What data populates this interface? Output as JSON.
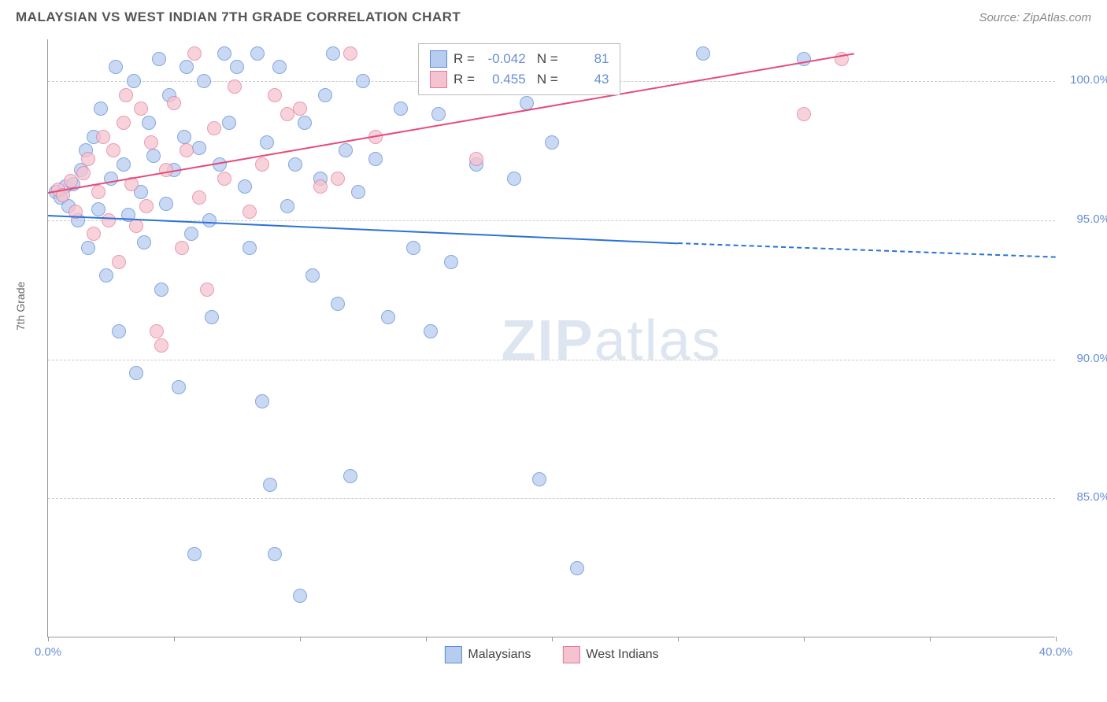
{
  "title": "MALAYSIAN VS WEST INDIAN 7TH GRADE CORRELATION CHART",
  "source": "Source: ZipAtlas.com",
  "watermark_bold": "ZIP",
  "watermark_light": "atlas",
  "chart": {
    "type": "scatter",
    "ylabel": "7th Grade",
    "xlim": [
      0,
      40
    ],
    "ylim": [
      80,
      101.5
    ],
    "yticks": [
      85.0,
      90.0,
      95.0,
      100.0
    ],
    "ytick_labels": [
      "85.0%",
      "90.0%",
      "95.0%",
      "100.0%"
    ],
    "xticks": [
      0,
      5,
      10,
      15,
      20,
      25,
      30,
      35,
      40
    ],
    "xtick_labels": [
      "0.0%",
      "",
      "",
      "",
      "",
      "",
      "",
      "",
      "40.0%"
    ],
    "background_color": "#ffffff",
    "grid_color": "#cccccc",
    "series": [
      {
        "name": "Malaysians",
        "marker_fill": "#b7cdf0",
        "marker_stroke": "#5a8bd6",
        "trend_color": "#2b72d8",
        "trend": {
          "x1": 0,
          "y1": 95.2,
          "x2": 25,
          "y2": 94.2,
          "extend_x": 40,
          "extend_y": 93.7
        },
        "R": "-0.042",
        "N": "81",
        "points": [
          [
            0.3,
            96.0
          ],
          [
            0.5,
            95.8
          ],
          [
            0.7,
            96.2
          ],
          [
            0.8,
            95.5
          ],
          [
            1.0,
            96.3
          ],
          [
            1.2,
            95.0
          ],
          [
            1.3,
            96.8
          ],
          [
            1.5,
            97.5
          ],
          [
            1.6,
            94.0
          ],
          [
            1.8,
            98.0
          ],
          [
            2.0,
            95.4
          ],
          [
            2.1,
            99.0
          ],
          [
            2.3,
            93.0
          ],
          [
            2.5,
            96.5
          ],
          [
            2.7,
            100.5
          ],
          [
            2.8,
            91.0
          ],
          [
            3.0,
            97.0
          ],
          [
            3.2,
            95.2
          ],
          [
            3.4,
            100.0
          ],
          [
            3.5,
            89.5
          ],
          [
            3.7,
            96.0
          ],
          [
            3.8,
            94.2
          ],
          [
            4.0,
            98.5
          ],
          [
            4.2,
            97.3
          ],
          [
            4.4,
            100.8
          ],
          [
            4.5,
            92.5
          ],
          [
            4.7,
            95.6
          ],
          [
            4.8,
            99.5
          ],
          [
            5.0,
            96.8
          ],
          [
            5.2,
            89.0
          ],
          [
            5.4,
            98.0
          ],
          [
            5.5,
            100.5
          ],
          [
            5.7,
            94.5
          ],
          [
            5.8,
            83.0
          ],
          [
            6.0,
            97.6
          ],
          [
            6.2,
            100.0
          ],
          [
            6.4,
            95.0
          ],
          [
            6.5,
            91.5
          ],
          [
            6.8,
            97.0
          ],
          [
            7.0,
            101.0
          ],
          [
            7.2,
            98.5
          ],
          [
            7.5,
            100.5
          ],
          [
            7.8,
            96.2
          ],
          [
            8.0,
            94.0
          ],
          [
            8.3,
            101.0
          ],
          [
            8.5,
            88.5
          ],
          [
            8.7,
            97.8
          ],
          [
            8.8,
            85.5
          ],
          [
            9.0,
            83.0
          ],
          [
            9.2,
            100.5
          ],
          [
            9.5,
            95.5
          ],
          [
            9.8,
            97.0
          ],
          [
            10.0,
            81.5
          ],
          [
            10.2,
            98.5
          ],
          [
            10.5,
            93.0
          ],
          [
            10.8,
            96.5
          ],
          [
            11.0,
            99.5
          ],
          [
            11.3,
            101.0
          ],
          [
            11.5,
            92.0
          ],
          [
            11.8,
            97.5
          ],
          [
            12.0,
            85.8
          ],
          [
            12.3,
            96.0
          ],
          [
            12.5,
            100.0
          ],
          [
            13.0,
            97.2
          ],
          [
            13.5,
            91.5
          ],
          [
            14.0,
            99.0
          ],
          [
            14.5,
            94.0
          ],
          [
            15.0,
            100.5
          ],
          [
            15.2,
            91.0
          ],
          [
            15.5,
            98.8
          ],
          [
            16.0,
            93.5
          ],
          [
            17.0,
            97.0
          ],
          [
            17.5,
            100.8
          ],
          [
            18.5,
            96.5
          ],
          [
            19.0,
            99.2
          ],
          [
            19.5,
            85.7
          ],
          [
            20.0,
            97.8
          ],
          [
            21.0,
            82.5
          ],
          [
            22.0,
            100.5
          ],
          [
            26.0,
            101.0
          ],
          [
            30.0,
            100.8
          ]
        ]
      },
      {
        "name": "West Indians",
        "marker_fill": "#f5c3cf",
        "marker_stroke": "#e37a9a",
        "trend_color": "#e64a7b",
        "trend": {
          "x1": 0,
          "y1": 96.0,
          "x2": 32,
          "y2": 101.0
        },
        "R": "0.455",
        "N": "43",
        "points": [
          [
            0.4,
            96.1
          ],
          [
            0.6,
            95.9
          ],
          [
            0.9,
            96.4
          ],
          [
            1.1,
            95.3
          ],
          [
            1.4,
            96.7
          ],
          [
            1.6,
            97.2
          ],
          [
            1.8,
            94.5
          ],
          [
            2.0,
            96.0
          ],
          [
            2.2,
            98.0
          ],
          [
            2.4,
            95.0
          ],
          [
            2.6,
            97.5
          ],
          [
            2.8,
            93.5
          ],
          [
            3.0,
            98.5
          ],
          [
            3.1,
            99.5
          ],
          [
            3.3,
            96.3
          ],
          [
            3.5,
            94.8
          ],
          [
            3.7,
            99.0
          ],
          [
            3.9,
            95.5
          ],
          [
            4.1,
            97.8
          ],
          [
            4.3,
            91.0
          ],
          [
            4.5,
            90.5
          ],
          [
            4.7,
            96.8
          ],
          [
            5.0,
            99.2
          ],
          [
            5.3,
            94.0
          ],
          [
            5.5,
            97.5
          ],
          [
            5.8,
            101.0
          ],
          [
            6.0,
            95.8
          ],
          [
            6.3,
            92.5
          ],
          [
            6.6,
            98.3
          ],
          [
            7.0,
            96.5
          ],
          [
            7.4,
            99.8
          ],
          [
            8.0,
            95.3
          ],
          [
            8.5,
            97.0
          ],
          [
            9.0,
            99.5
          ],
          [
            9.5,
            98.8
          ],
          [
            10.0,
            99.0
          ],
          [
            10.8,
            96.2
          ],
          [
            11.5,
            96.5
          ],
          [
            12.0,
            101.0
          ],
          [
            13.0,
            98.0
          ],
          [
            17.0,
            97.2
          ],
          [
            30.0,
            98.8
          ],
          [
            31.5,
            100.8
          ]
        ]
      }
    ],
    "legend_labels": {
      "R_label": "R =",
      "N_label": "N ="
    }
  }
}
